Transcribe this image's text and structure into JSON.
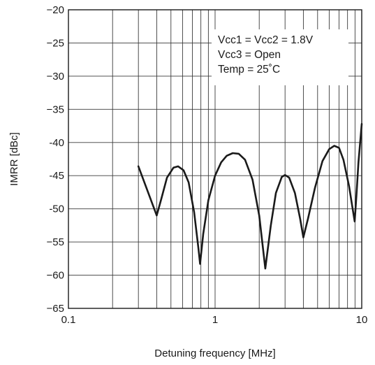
{
  "chart_data": {
    "type": "line",
    "title": "",
    "xlabel": "Detuning frequency [MHz]",
    "ylabel": "IMRR [dBc]",
    "x_scale": "log",
    "xlim": [
      0.1,
      10
    ],
    "ylim": [
      -65,
      -20
    ],
    "x_ticks": [
      0.1,
      1,
      10
    ],
    "x_tick_labels": [
      "0.1",
      "1",
      "10"
    ],
    "y_ticks": [
      -20,
      -25,
      -30,
      -35,
      -40,
      -45,
      -50,
      -55,
      -60,
      -65
    ],
    "y_tick_labels": [
      "−20",
      "−25",
      "−30",
      "−35",
      "-40",
      "-45",
      "-50",
      "−55",
      "−60",
      "−65"
    ],
    "grid": true,
    "annotations": [
      "Vcc1 = Vcc2 = 1.8V",
      "Vcc3 = Open",
      "Temp = 25˚C"
    ],
    "series": [
      {
        "color": "#1a1a1a",
        "points": [
          [
            0.3,
            -43.6
          ],
          [
            0.4,
            -51.0
          ],
          [
            0.43,
            -48.5
          ],
          [
            0.47,
            -45.3
          ],
          [
            0.52,
            -43.8
          ],
          [
            0.56,
            -43.6
          ],
          [
            0.61,
            -44.2
          ],
          [
            0.66,
            -46.0
          ],
          [
            0.72,
            -50.5
          ],
          [
            0.77,
            -56.0
          ],
          [
            0.79,
            -58.3
          ],
          [
            0.83,
            -53.8
          ],
          [
            0.9,
            -48.7
          ],
          [
            1.0,
            -45.0
          ],
          [
            1.1,
            -43.0
          ],
          [
            1.2,
            -42.0
          ],
          [
            1.32,
            -41.6
          ],
          [
            1.45,
            -41.7
          ],
          [
            1.6,
            -42.6
          ],
          [
            1.8,
            -45.6
          ],
          [
            2.0,
            -51.0
          ],
          [
            2.2,
            -59.0
          ],
          [
            2.4,
            -52.5
          ],
          [
            2.6,
            -47.6
          ],
          [
            2.85,
            -45.2
          ],
          [
            3.0,
            -44.9
          ],
          [
            3.2,
            -45.3
          ],
          [
            3.5,
            -47.6
          ],
          [
            3.8,
            -51.5
          ],
          [
            4.0,
            -54.3
          ],
          [
            4.3,
            -51.5
          ],
          [
            4.8,
            -46.8
          ],
          [
            5.4,
            -42.8
          ],
          [
            6.0,
            -41.0
          ],
          [
            6.5,
            -40.5
          ],
          [
            7.0,
            -40.8
          ],
          [
            7.5,
            -42.6
          ],
          [
            8.2,
            -46.6
          ],
          [
            8.7,
            -50.2
          ],
          [
            8.95,
            -51.9
          ],
          [
            9.2,
            -48.0
          ],
          [
            9.5,
            -43.0
          ],
          [
            10.0,
            -37.2
          ]
        ]
      }
    ]
  }
}
